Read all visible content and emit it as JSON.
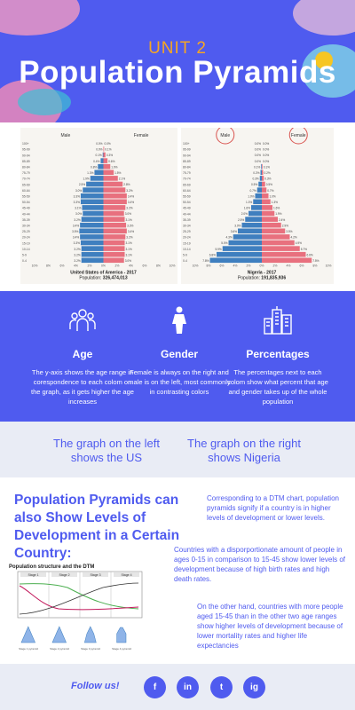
{
  "header": {
    "unit": "UNIT 2",
    "title": "Population Pyramids"
  },
  "pyramids": {
    "us": {
      "caption": "United States of America - 2017",
      "population_label": "Population:",
      "population": "326,474,013",
      "male_label": "Male",
      "female_label": "Female",
      "age_groups": [
        "100+",
        "95-99",
        "90-94",
        "85-89",
        "80-84",
        "75-79",
        "70-74",
        "65-69",
        "60-64",
        "55-59",
        "50-54",
        "45-49",
        "40-44",
        "35-39",
        "30-34",
        "25-29",
        "20-24",
        "15-19",
        "10-14",
        "5-9",
        "0-4"
      ],
      "male_pct": [
        0.0,
        0.0,
        0.1,
        0.4,
        0.8,
        1.3,
        1.9,
        2.5,
        3.0,
        3.3,
        3.3,
        3.1,
        3.0,
        3.2,
        3.4,
        3.5,
        3.4,
        3.3,
        3.2,
        3.2,
        3.2
      ],
      "female_pct": [
        0.0,
        0.1,
        0.3,
        0.6,
        1.0,
        1.5,
        2.1,
        2.8,
        3.2,
        3.4,
        3.4,
        3.2,
        3.0,
        3.1,
        3.3,
        3.4,
        3.2,
        3.1,
        3.1,
        3.1,
        3.0
      ],
      "x_ticks": [
        "10%",
        "8%",
        "6%",
        "4%",
        "2%",
        "0%",
        "2%",
        "4%",
        "6%",
        "8%",
        "10%"
      ]
    },
    "nigeria": {
      "caption": "Nigeria - 2017",
      "population_label": "Population:",
      "population": "191,835,936",
      "male_label": "Male",
      "female_label": "Female",
      "age_groups": [
        "100+",
        "95-99",
        "90-94",
        "85-89",
        "80-84",
        "75-79",
        "70-74",
        "65-69",
        "60-64",
        "55-59",
        "50-54",
        "45-49",
        "40-44",
        "35-39",
        "30-34",
        "25-29",
        "20-24",
        "15-19",
        "10-14",
        "5-9",
        "0-4"
      ],
      "male_pct": [
        0.0,
        0.0,
        0.0,
        0.0,
        0.1,
        0.2,
        0.3,
        0.5,
        0.7,
        1.0,
        1.3,
        1.6,
        2.0,
        2.5,
        3.0,
        3.6,
        4.3,
        5.0,
        5.9,
        6.8,
        7.8
      ],
      "female_pct": [
        0.0,
        0.0,
        0.0,
        0.0,
        0.1,
        0.2,
        0.3,
        0.5,
        0.7,
        1.0,
        1.3,
        1.6,
        1.9,
        2.4,
        2.9,
        3.5,
        4.2,
        4.9,
        5.7,
        6.6,
        7.5
      ],
      "x_ticks": [
        "10%",
        "8%",
        "6%",
        "4%",
        "2%",
        "0%",
        "2%",
        "4%",
        "6%",
        "8%",
        "10%"
      ]
    }
  },
  "features": [
    {
      "icon": "people-icon",
      "title": "Age",
      "text": "The y-axis shows the age range in corespondence to each colom on the graph, as it gets higher the age increases"
    },
    {
      "icon": "person-icon",
      "title": "Gender",
      "text": "Female is always on the right and male is on the left, most  commonly in contrasting colors"
    },
    {
      "icon": "city-icon",
      "title": "Percentages",
      "text": "The percentages next to each colom show what percent that age and gender takes up of the whole population"
    }
  ],
  "note": {
    "left": "The graph on the left shows the US",
    "right": "The graph on the right shows Nigeria"
  },
  "levels": {
    "title": "Population Pyramids can also Show Levels of Development in a Certain Country:",
    "chart_title": "Population structure and the DTM",
    "stages": [
      "Stage 1",
      "Stage 2",
      "Stage 3",
      "Stage 4"
    ],
    "pyramid_captions": [
      "Stage 1 pyramid",
      "Stage 2 pyramid",
      "Stage 3 pyramid",
      "Stage 4 pyramid"
    ],
    "p1": "Corresponding to a DTM chart, population pyramids signify if a country is in higher levels of development or lower levels.",
    "p2": "Countries with a disporportionate amount of people in ages 0-15 in comparison to 15-45 show lower levels of development because of high birth rates and high death rates.",
    "p3": "On the other hand, countries with more people aged 15-45 than in the other two age ranges show higher levels of development because of lower mortality rates and higher life expectancies"
  },
  "footer": {
    "follow": "Follow us!",
    "social": [
      "f",
      "in",
      "t",
      "ig"
    ]
  },
  "colors": {
    "brand": "#4f5bef",
    "accent": "#f6a623",
    "male": "#3f7fbf",
    "female": "#e8707e"
  }
}
